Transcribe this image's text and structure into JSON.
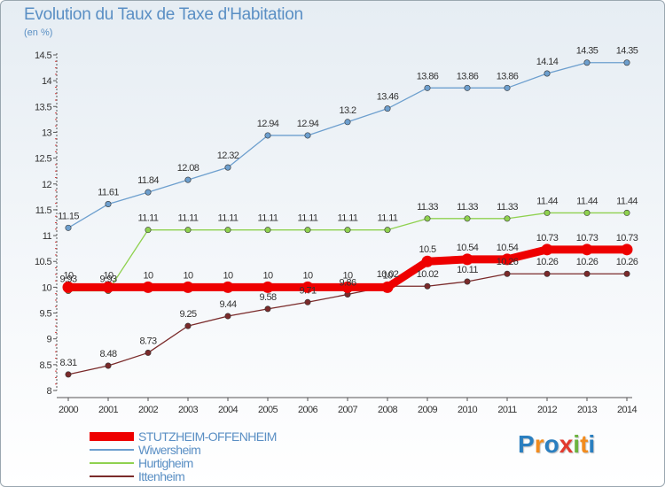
{
  "title": "Evolution du Taux de Taxe d'Habitation",
  "subtitle": "(en %)",
  "logo": {
    "text": "Proxiti",
    "letters": [
      "P",
      "r",
      "o",
      "x",
      "i",
      "t",
      "i"
    ],
    "colors": [
      "#2a7fc0",
      "#f28c1e",
      "#2a7fc0",
      "#e23a2e",
      "#6cb33f",
      "#f28c1e",
      "#2a7fc0"
    ]
  },
  "chart_data": {
    "type": "line",
    "title": "Evolution du Taux de Taxe d'Habitation",
    "ylabel": "(en %)",
    "xlabel": "",
    "x": [
      "2000",
      "2001",
      "2002",
      "2003",
      "2004",
      "2005",
      "2006",
      "2007",
      "2008",
      "2009",
      "2010",
      "2011",
      "2012",
      "2013",
      "2014"
    ],
    "ylim": [
      8,
      14.5
    ],
    "yticks": [
      "8",
      "8.5",
      "9",
      "9.5",
      "10",
      "10.5",
      "11",
      "11.5",
      "12",
      "12.5",
      "13",
      "13.5",
      "14",
      "14.5"
    ],
    "grid": false,
    "legend_position": "bottom-left",
    "series": [
      {
        "name": "STUTZHEIM-OFFENHEIM",
        "color": "#ee0000",
        "width": 9,
        "values": [
          10,
          10,
          10,
          10,
          10,
          10,
          10,
          10,
          10,
          10.5,
          10.54,
          10.54,
          10.73,
          10.73,
          10.73
        ],
        "labels": [
          "10",
          "10",
          "10",
          "10",
          "10",
          "10",
          "10",
          "10",
          "10",
          "10.5",
          "10.54",
          "10.54",
          "10.73",
          "10.73",
          "10.73"
        ]
      },
      {
        "name": "Wiwersheim",
        "color": "#6d9fce",
        "width": 1.3,
        "values": [
          11.15,
          11.61,
          11.84,
          12.08,
          12.32,
          12.94,
          12.94,
          13.2,
          13.46,
          13.86,
          13.86,
          13.86,
          14.14,
          14.35,
          14.35
        ],
        "labels": [
          "11.15",
          "11.61",
          "11.84",
          "12.08",
          "12.32",
          "12.94",
          "12.94",
          "13.2",
          "13.46",
          "13.86",
          "13.86",
          "13.86",
          "14.14",
          "14.35",
          "14.35"
        ]
      },
      {
        "name": "Hurtigheim",
        "color": "#8fd14f",
        "width": 1.3,
        "values": [
          9.93,
          9.93,
          11.11,
          11.11,
          11.11,
          11.11,
          11.11,
          11.11,
          11.11,
          11.33,
          11.33,
          11.33,
          11.44,
          11.44,
          11.44
        ],
        "labels": [
          "9.93",
          "9.93",
          "11.11",
          "11.11",
          "11.11",
          "11.11",
          "11.11",
          "11.11",
          "11.11",
          "11.33",
          "11.33",
          "11.33",
          "11.44",
          "11.44",
          "11.44"
        ]
      },
      {
        "name": "Ittenheim",
        "color": "#7a2a2a",
        "width": 1.3,
        "values": [
          8.31,
          8.48,
          8.73,
          9.25,
          9.44,
          9.58,
          9.71,
          9.86,
          10.02,
          10.02,
          10.11,
          10.26,
          10.26,
          10.26,
          10.26
        ],
        "labels": [
          "8.31",
          "8.48",
          "8.73",
          "9.25",
          "9.44",
          "9.58",
          "9.71",
          "9.86",
          "10.02",
          "10.02",
          "10.11",
          "10.26",
          "10.26",
          "10.26",
          "10.26"
        ]
      }
    ]
  }
}
